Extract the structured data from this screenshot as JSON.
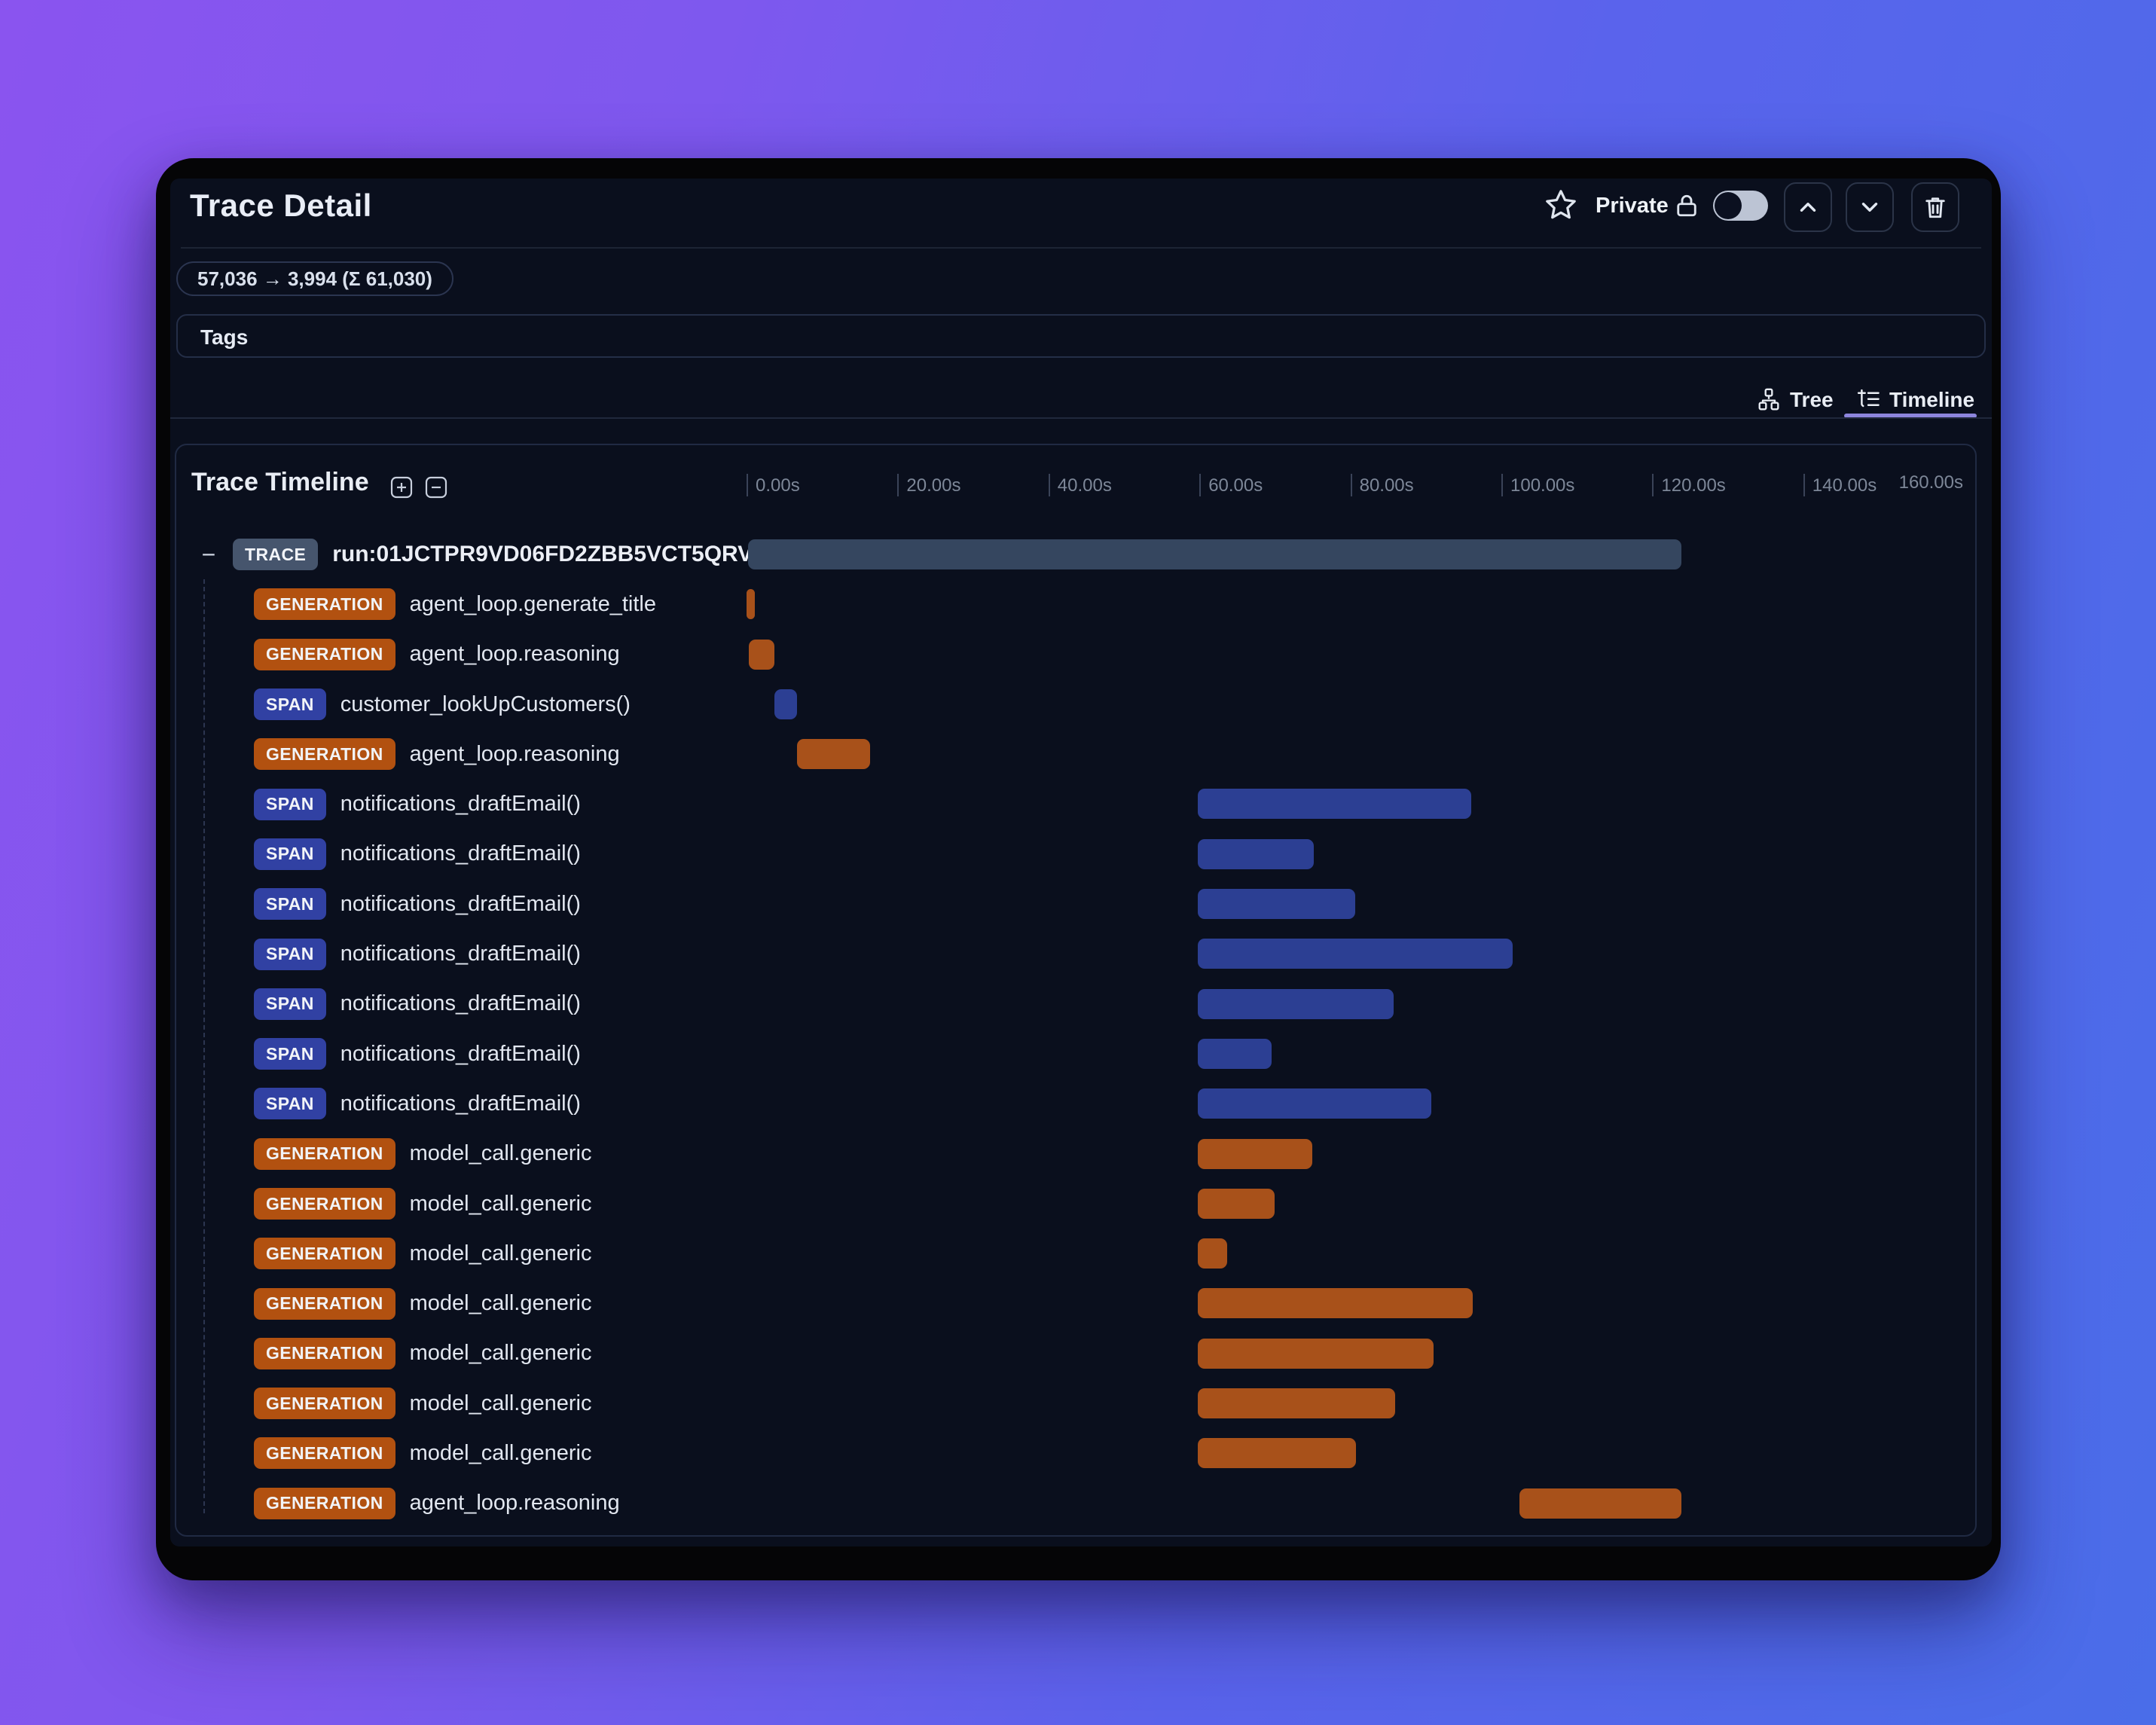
{
  "header": {
    "title": "Trace Detail",
    "private_label": "Private",
    "actions": {
      "favorite": "star-toggle",
      "collapse_up": "chevron-up",
      "collapse_down": "chevron-down",
      "delete": "trash"
    },
    "privacy_toggle_state": "off"
  },
  "token_badge": {
    "text": "57,036 → 3,994 (Σ 61,030)"
  },
  "tags": {
    "label": "Tags"
  },
  "tabs": {
    "tree_label": "Tree",
    "timeline_label": "Timeline",
    "active": "Timeline"
  },
  "colors": {
    "accent_underline": "#8d85dc",
    "badge_trace": "#46556d",
    "badge_generation": "#b25110",
    "badge_span": "#3141a3",
    "bar_trace": "#35465f",
    "bar_generation": "#a8511a",
    "bar_span": "#2c3f93",
    "panel_bg": "#0a0f1d",
    "bg_gradient_left": "#8a54ef",
    "bg_gradient_right": "#4a6de9"
  },
  "timeline": {
    "title": "Trace Timeline",
    "collapse_glyph": "−",
    "axis": {
      "ticks": [
        {
          "t": 0,
          "label": "0.00s"
        },
        {
          "t": 20,
          "label": "20.00s"
        },
        {
          "t": 40,
          "label": "40.00s"
        },
        {
          "t": 60,
          "label": "60.00s"
        },
        {
          "t": 80,
          "label": "80.00s"
        },
        {
          "t": 100,
          "label": "100.00s"
        },
        {
          "t": 120,
          "label": "120.00s"
        },
        {
          "t": 140,
          "label": "140.00s"
        }
      ],
      "end_label": "160.00s",
      "max_s": 160
    },
    "rows": [
      {
        "type": "TRACE",
        "label": "run:01JCTPR9VD06FD2ZBB5VCT5QRV",
        "depth": 0,
        "start_s": 0.2,
        "end_s": 123.9
      },
      {
        "type": "GENERATION",
        "label": "agent_loop.generate_title",
        "depth": 1,
        "start_s": 0.0,
        "end_s": 1.1
      },
      {
        "type": "GENERATION",
        "label": "agent_loop.reasoning",
        "depth": 1,
        "start_s": 0.3,
        "end_s": 3.7
      },
      {
        "type": "SPAN",
        "label": "customer_lookUpCustomers()",
        "depth": 1,
        "start_s": 3.7,
        "end_s": 6.7
      },
      {
        "type": "GENERATION",
        "label": "agent_loop.reasoning",
        "depth": 1,
        "start_s": 6.7,
        "end_s": 16.4
      },
      {
        "type": "SPAN",
        "label": "notifications_draftEmail()",
        "depth": 1,
        "start_s": 59.8,
        "end_s": 96.0
      },
      {
        "type": "SPAN",
        "label": "notifications_draftEmail()",
        "depth": 1,
        "start_s": 59.8,
        "end_s": 75.2
      },
      {
        "type": "SPAN",
        "label": "notifications_draftEmail()",
        "depth": 1,
        "start_s": 59.8,
        "end_s": 80.6
      },
      {
        "type": "SPAN",
        "label": "notifications_draftEmail()",
        "depth": 1,
        "start_s": 59.8,
        "end_s": 101.5
      },
      {
        "type": "SPAN",
        "label": "notifications_draftEmail()",
        "depth": 1,
        "start_s": 59.8,
        "end_s": 85.7
      },
      {
        "type": "SPAN",
        "label": "notifications_draftEmail()",
        "depth": 1,
        "start_s": 59.8,
        "end_s": 69.6
      },
      {
        "type": "SPAN",
        "label": "notifications_draftEmail()",
        "depth": 1,
        "start_s": 59.8,
        "end_s": 90.7
      },
      {
        "type": "GENERATION",
        "label": "model_call.generic",
        "depth": 1,
        "start_s": 59.8,
        "end_s": 75.0
      },
      {
        "type": "GENERATION",
        "label": "model_call.generic",
        "depth": 1,
        "start_s": 59.8,
        "end_s": 70.0
      },
      {
        "type": "GENERATION",
        "label": "model_call.generic",
        "depth": 1,
        "start_s": 59.8,
        "end_s": 63.7
      },
      {
        "type": "GENERATION",
        "label": "model_call.generic",
        "depth": 1,
        "start_s": 59.8,
        "end_s": 96.2
      },
      {
        "type": "GENERATION",
        "label": "model_call.generic",
        "depth": 1,
        "start_s": 59.8,
        "end_s": 91.0
      },
      {
        "type": "GENERATION",
        "label": "model_call.generic",
        "depth": 1,
        "start_s": 59.8,
        "end_s": 85.9
      },
      {
        "type": "GENERATION",
        "label": "model_call.generic",
        "depth": 1,
        "start_s": 59.8,
        "end_s": 80.7
      },
      {
        "type": "GENERATION",
        "label": "agent_loop.reasoning",
        "depth": 1,
        "start_s": 102.4,
        "end_s": 123.9
      }
    ]
  }
}
